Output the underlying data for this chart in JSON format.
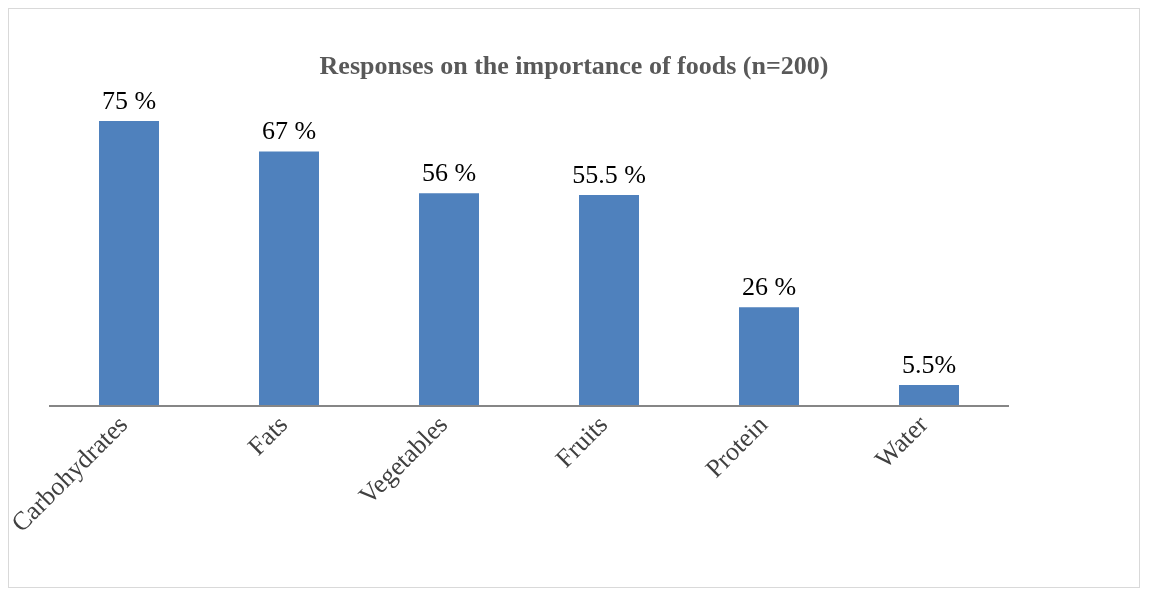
{
  "chart_data": {
    "type": "bar",
    "title": "Responses on the importance of foods (n=200)",
    "categories": [
      "Carbohydrates",
      "Fats",
      "Vegetables",
      "Fruits",
      "Protein",
      "Water"
    ],
    "values": [
      75,
      67,
      56,
      55.5,
      26,
      5.5
    ],
    "value_labels": [
      "75 %",
      "67 %",
      "56 %",
      "55.5 %",
      "26 %",
      "5.5%"
    ],
    "color": "#4f81bd",
    "grid": false,
    "legend": false
  }
}
